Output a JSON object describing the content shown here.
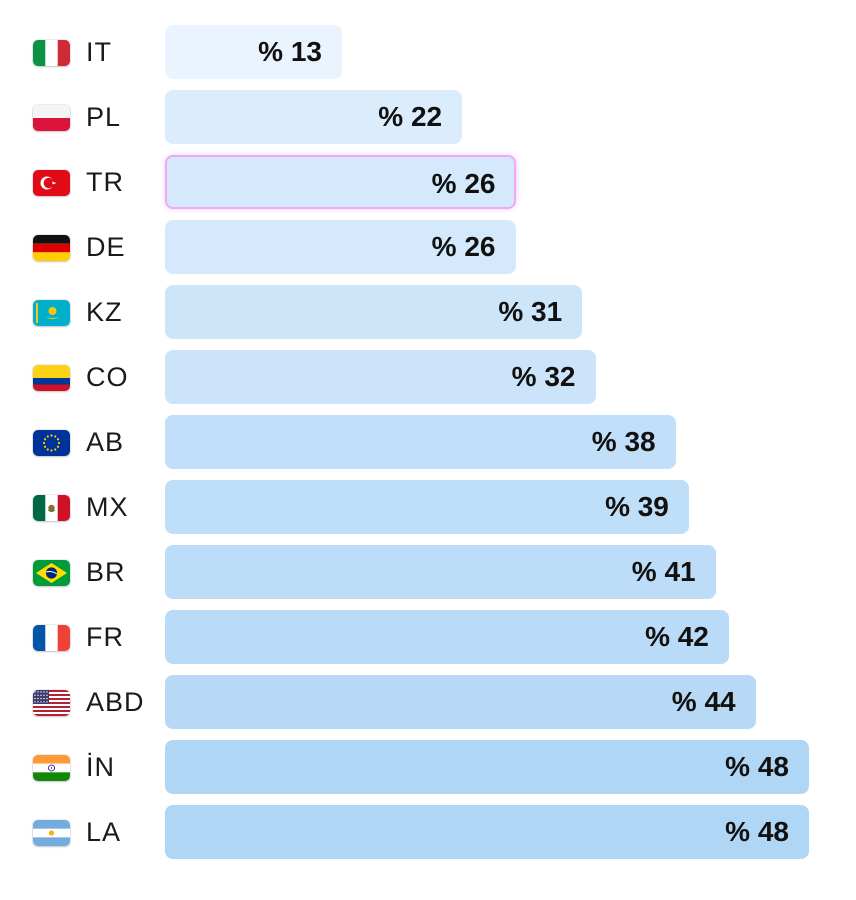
{
  "chart_data": {
    "type": "bar",
    "orientation": "horizontal",
    "value_prefix": "% ",
    "xlim": [
      0,
      48
    ],
    "categories": [
      "IT",
      "PL",
      "TR",
      "DE",
      "KZ",
      "CO",
      "AB",
      "MX",
      "BR",
      "FR",
      "ABD",
      "İN",
      "LA"
    ],
    "values": [
      13,
      22,
      26,
      26,
      31,
      32,
      38,
      39,
      41,
      42,
      44,
      48,
      48
    ],
    "highlighted_category": "TR",
    "flags": [
      {
        "code": "IT",
        "icon": "italy-flag-icon"
      },
      {
        "code": "PL",
        "icon": "poland-flag-icon"
      },
      {
        "code": "TR",
        "icon": "turkey-flag-icon"
      },
      {
        "code": "DE",
        "icon": "germany-flag-icon"
      },
      {
        "code": "KZ",
        "icon": "kazakhstan-flag-icon"
      },
      {
        "code": "CO",
        "icon": "colombia-flag-icon"
      },
      {
        "code": "AB",
        "icon": "eu-flag-icon"
      },
      {
        "code": "MX",
        "icon": "mexico-flag-icon"
      },
      {
        "code": "BR",
        "icon": "brazil-flag-icon"
      },
      {
        "code": "FR",
        "icon": "france-flag-icon"
      },
      {
        "code": "ABD",
        "icon": "usa-flag-icon"
      },
      {
        "code": "İN",
        "icon": "india-flag-icon"
      },
      {
        "code": "LA",
        "icon": "argentina-flag-icon"
      }
    ],
    "colors": {
      "bar_light": "#eaf4fe",
      "bar_dark": "#b0d6f5",
      "highlight_border": "#f1a8f5",
      "label_text": "#1a1a1a",
      "value_text": "#111111"
    },
    "grid": false,
    "legend": "none",
    "title": "",
    "xlabel": "",
    "ylabel": ""
  }
}
